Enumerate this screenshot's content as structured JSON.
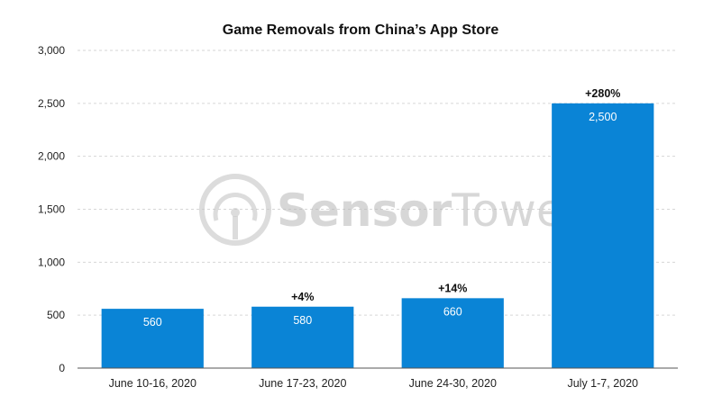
{
  "chart_data": {
    "type": "bar",
    "title": "Game Removals from China’s App Store",
    "xlabel": "",
    "ylabel": "",
    "categories": [
      "June 10-16, 2020",
      "June 17-23, 2020",
      "June 24-30, 2020",
      "July 1-7, 2020"
    ],
    "values": [
      560,
      580,
      660,
      2500
    ],
    "value_labels": [
      "560",
      "580",
      "660",
      "2,500"
    ],
    "change_labels": [
      "",
      "+4%",
      "+14%",
      "+280%"
    ],
    "ylim": [
      0,
      3000
    ],
    "yticks": [
      0,
      500,
      1000,
      1500,
      2000,
      2500,
      3000
    ],
    "ytick_labels": [
      "0",
      "500",
      "1,000",
      "1,500",
      "2,000",
      "2,500",
      "3,000"
    ],
    "grid": true,
    "bar_color": "#0a84d6"
  },
  "watermark": {
    "text_part1": "Sensor",
    "text_part2": "Tower",
    "color": "#b8b8b8"
  }
}
